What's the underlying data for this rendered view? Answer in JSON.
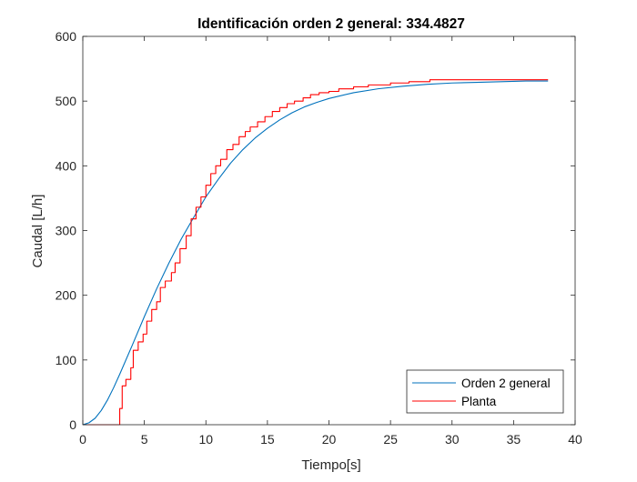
{
  "chart_data": {
    "type": "line",
    "title": "Identificación orden 2 general: 334.4827",
    "xlabel": "Tiempo[s]",
    "ylabel": "Caudal [L/h]",
    "xlim": [
      0,
      40
    ],
    "ylim": [
      0,
      600
    ],
    "xticks": [
      0,
      5,
      10,
      15,
      20,
      25,
      30,
      35,
      40
    ],
    "yticks": [
      0,
      100,
      200,
      300,
      400,
      500,
      600
    ],
    "grid": false,
    "legend_position": "bottom-right",
    "series": [
      {
        "name": "Orden 2 general",
        "color": "#0072BD",
        "interpolation": "linear",
        "x": [
          0,
          0.5,
          1,
          1.5,
          2,
          2.5,
          3,
          4,
          5,
          6,
          7,
          8,
          9,
          10,
          11,
          12,
          13,
          14,
          15,
          16,
          17,
          18,
          19,
          20,
          22,
          24,
          26,
          28,
          30,
          32,
          34,
          36,
          37.8
        ],
        "y": [
          0,
          3,
          10,
          22,
          38,
          57,
          78,
          122,
          167,
          210,
          250,
          287,
          320,
          352,
          379,
          404,
          425,
          443,
          458,
          471,
          482,
          491,
          498,
          504,
          513,
          519,
          523,
          526,
          528,
          529,
          530,
          531,
          531
        ]
      },
      {
        "name": "Planta",
        "color": "#FF0000",
        "interpolation": "step",
        "x": [
          0,
          2.7,
          3,
          3.2,
          3.5,
          3.9,
          4.1,
          4.5,
          4.9,
          5.2,
          5.6,
          6,
          6.3,
          6.7,
          7.2,
          7.5,
          7.9,
          8.4,
          8.8,
          9.2,
          9.6,
          10,
          10.4,
          10.8,
          11.2,
          11.7,
          12.2,
          12.7,
          13.2,
          13.6,
          14.2,
          14.8,
          15.4,
          16,
          16.6,
          17.2,
          17.9,
          18.5,
          19.2,
          20,
          20.8,
          22,
          23.2,
          25,
          26.5,
          28.2,
          30,
          33,
          37.8
        ],
        "y": [
          0,
          0,
          25,
          60,
          70,
          88,
          115,
          128,
          140,
          160,
          178,
          190,
          212,
          222,
          235,
          250,
          272,
          292,
          318,
          336,
          352,
          370,
          388,
          400,
          410,
          425,
          433,
          445,
          453,
          460,
          468,
          476,
          484,
          490,
          496,
          500,
          505,
          510,
          513,
          515,
          519,
          522,
          525,
          528,
          530,
          533,
          533,
          533,
          533
        ]
      }
    ]
  }
}
